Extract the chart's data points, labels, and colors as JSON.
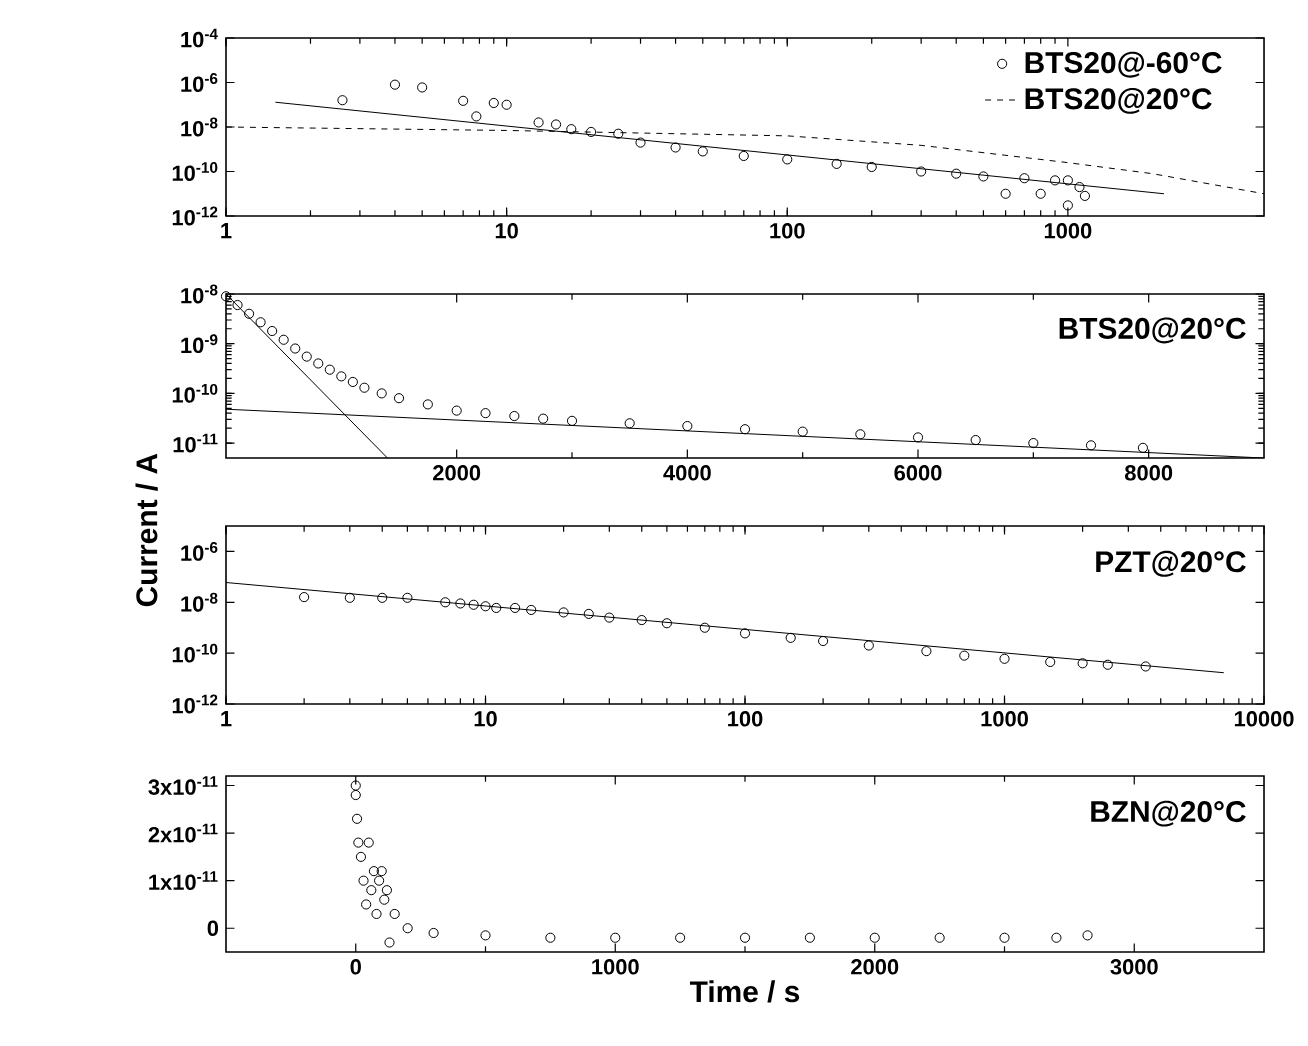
{
  "chart_data": [
    {
      "type": "scatter",
      "log": "xy",
      "legend": "top right",
      "grid": false,
      "xlim": [
        1,
        5000
      ],
      "xticks": [
        1,
        10,
        100,
        1000
      ],
      "ylim": [
        1e-12,
        0.0001
      ],
      "yticks": [
        {
          "value": 1e-12,
          "label": "10$^{-12}$"
        },
        {
          "value": 1e-10,
          "label": "10$^{-10}$"
        },
        {
          "value": 1e-08,
          "label": "10$^{-8}$"
        },
        {
          "value": 1e-06,
          "label": "10$^{-6}$"
        },
        {
          "value": 0.0001,
          "label": "10$^{-4}$"
        }
      ],
      "series": [
        {
          "name": "BTS20@-60°C",
          "marker": "circle",
          "color": "#000000",
          "x": [
            2.6,
            4,
            5,
            7,
            7.8,
            9,
            10,
            13,
            15,
            17,
            20,
            25,
            30,
            40,
            50,
            70,
            100,
            150,
            200,
            300,
            400,
            500,
            600,
            700,
            800,
            900,
            1000,
            1000,
            1100,
            1150
          ],
          "values": [
            1.6e-07,
            8e-07,
            6e-07,
            1.5e-07,
            3e-08,
            1.2e-07,
            1e-07,
            1.6e-08,
            1.3e-08,
            8e-09,
            6e-09,
            5e-09,
            2e-09,
            1.2e-09,
            8e-10,
            5e-10,
            3.5e-10,
            2.2e-10,
            1.6e-10,
            1e-10,
            8e-11,
            6e-11,
            1e-11,
            5e-11,
            1e-11,
            4e-11,
            4e-11,
            3e-12,
            2e-11,
            8e-12
          ]
        },
        {
          "type": "line",
          "marker": "none",
          "color": "#000000",
          "x": [
            1.5,
            2200
          ],
          "values": [
            1.3e-07,
            1e-11
          ]
        },
        {
          "name": "BTS20@20°C",
          "type": "line",
          "marker": "none",
          "line_style": "dashed",
          "color": "#000000",
          "x": [
            1,
            10,
            100,
            300,
            1000,
            2000,
            5000
          ],
          "values": [
            1e-08,
            7e-09,
            4e-09,
            1.5e-09,
            2.5e-10,
            8e-11,
            1e-11
          ]
        }
      ]
    },
    {
      "type": "scatter",
      "log": "y",
      "grid": false,
      "ylabel": "Current / A",
      "annotations": [
        "BTS20@20°C"
      ],
      "xlim": [
        0,
        9000
      ],
      "xticks": [
        2000,
        4000,
        6000,
        8000
      ],
      "ylim": [
        5e-12,
        1e-08
      ],
      "yticks": [
        {
          "value": 1e-11,
          "label": "10$^{-11}$"
        },
        {
          "value": 1e-10,
          "label": "10$^{-10}$"
        },
        {
          "value": 1e-09,
          "label": "10$^{-9}$"
        },
        {
          "value": 1e-08,
          "label": "10$^{-8}$"
        }
      ],
      "series": [
        {
          "marker": "circle",
          "color": "#000000",
          "x": [
            0,
            100,
            200,
            300,
            400,
            500,
            600,
            700,
            800,
            900,
            1000,
            1100,
            1200,
            1350,
            1500,
            1750,
            2000,
            2250,
            2500,
            2750,
            3000,
            3500,
            4000,
            4500,
            5000,
            5500,
            6000,
            6500,
            7000,
            7500,
            7950
          ],
          "values": [
            9e-09,
            6e-09,
            4e-09,
            2.7e-09,
            1.8e-09,
            1.2e-09,
            8e-10,
            5.5e-10,
            4e-10,
            3e-10,
            2.2e-10,
            1.7e-10,
            1.3e-10,
            1e-10,
            8e-11,
            6e-11,
            4.5e-11,
            4e-11,
            3.5e-11,
            3.1e-11,
            2.8e-11,
            2.5e-11,
            2.2e-11,
            1.9e-11,
            1.7e-11,
            1.5e-11,
            1.3e-11,
            1.15e-11,
            1e-11,
            9e-12,
            8e-12
          ]
        },
        {
          "type": "line",
          "marker": "none",
          "color": "#000000",
          "x": [
            0,
            1400
          ],
          "values": [
            1e-08,
            5e-12
          ]
        },
        {
          "type": "line",
          "marker": "none",
          "color": "#000000",
          "x": [
            0,
            9000
          ],
          "values": [
            4.8e-11,
            5e-12
          ]
        }
      ]
    },
    {
      "type": "scatter",
      "log": "xy",
      "grid": false,
      "annotations": [
        "PZT@20°C"
      ],
      "xlim": [
        1,
        10000
      ],
      "xticks": [
        1,
        10,
        100,
        1000,
        10000
      ],
      "ylim": [
        1e-12,
        1e-05
      ],
      "yticks": [
        {
          "value": 1e-12,
          "label": "10$^{-12}$"
        },
        {
          "value": 1e-10,
          "label": "10$^{-10}$"
        },
        {
          "value": 1e-08,
          "label": "10$^{-8}$"
        },
        {
          "value": 1e-06,
          "label": "10$^{-6}$"
        }
      ],
      "series": [
        {
          "marker": "circle",
          "color": "#000000",
          "x": [
            2,
            3,
            4,
            5,
            7,
            8,
            9,
            10,
            11,
            13,
            15,
            20,
            25,
            30,
            40,
            50,
            70,
            100,
            150,
            200,
            300,
            500,
            700,
            1000,
            1500,
            2000,
            2500,
            3500
          ],
          "values": [
            1.6e-08,
            1.5e-08,
            1.5e-08,
            1.5e-08,
            1e-08,
            9e-09,
            8e-09,
            7e-09,
            6e-09,
            6e-09,
            5e-09,
            4e-09,
            3.5e-09,
            2.5e-09,
            2e-09,
            1.5e-09,
            1e-09,
            6e-10,
            4e-10,
            3e-10,
            2e-10,
            1.2e-10,
            8e-11,
            6e-11,
            4.5e-11,
            4e-11,
            3.5e-11,
            3e-11
          ]
        },
        {
          "type": "line",
          "marker": "none",
          "color": "#000000",
          "x": [
            1,
            7000
          ],
          "values": [
            6e-08,
            1.7e-11
          ]
        }
      ]
    },
    {
      "type": "scatter",
      "grid": false,
      "xlabel": "Time / s",
      "annotations": [
        "BZN@20°C"
      ],
      "xlim": [
        -500,
        3500
      ],
      "xticks": [
        0,
        1000,
        2000,
        3000
      ],
      "ylim": [
        -5e-12,
        3.2e-11
      ],
      "yticks": [
        {
          "value": 0,
          "label": "0"
        },
        {
          "value": 1e-11,
          "label": "1x10$^{-11}$"
        },
        {
          "value": 2e-11,
          "label": "2x10$^{-11}$"
        },
        {
          "value": 3e-11,
          "label": "3x10$^{-11}$"
        }
      ],
      "series": [
        {
          "marker": "circle",
          "color": "#000000",
          "x": [
            0,
            0,
            5,
            10,
            20,
            30,
            40,
            50,
            60,
            70,
            80,
            90,
            100,
            110,
            120,
            130,
            150,
            200,
            300,
            500,
            750,
            1000,
            1250,
            1500,
            1750,
            2000,
            2250,
            2500,
            2700,
            2820
          ],
          "values": [
            3e-11,
            2.8e-11,
            2.3e-11,
            1.8e-11,
            1.5e-11,
            1e-11,
            5e-12,
            1.8e-11,
            8e-12,
            1.2e-11,
            3e-12,
            1e-11,
            1.2e-11,
            6e-12,
            8e-12,
            -3e-12,
            3e-12,
            0,
            -1e-12,
            -1.5e-12,
            -2e-12,
            -2e-12,
            -2e-12,
            -2e-12,
            -2e-12,
            -2e-12,
            -2e-12,
            -2e-12,
            -2e-12,
            -1.5e-12
          ]
        }
      ]
    }
  ]
}
